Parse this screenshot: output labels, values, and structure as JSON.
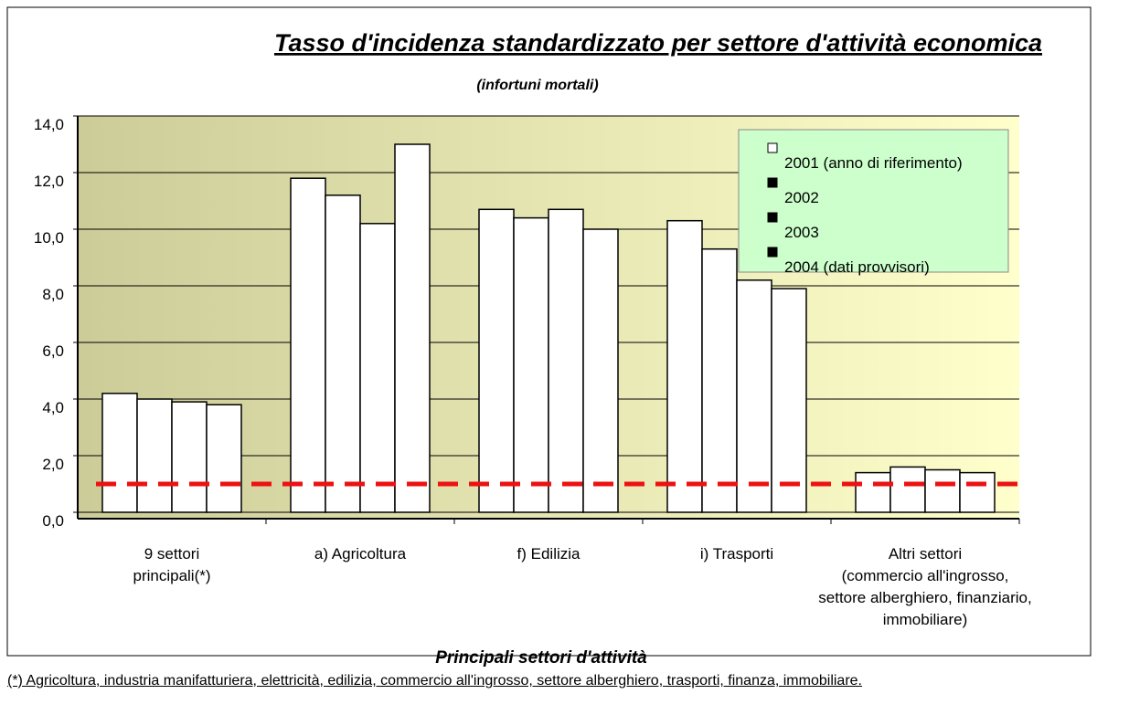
{
  "chart_data": {
    "type": "bar",
    "title": "Tasso d'incidenza standardizzato per settore d'attività economica",
    "subtitle": "(infortuni mortali)",
    "x_label": "Principali settori d'attività",
    "footnote": "(*) Agricoltura, industria manifatturiera, elettricità, edilizia, commercio all'ingrosso, settore alberghiero, trasporti, finanza, immobiliare.",
    "categories": [
      "9 settori\nprincipali(*)",
      "a) Agricoltura",
      "f) Edilizia",
      "i) Trasporti",
      "Altri settori\n(commercio all'ingrosso,\nsettore alberghiero, finanziario,\nimmobiliare)"
    ],
    "series": [
      {
        "name": "2001 (anno di riferimento)",
        "color": "#ffffff",
        "legend_color": "#ffffff",
        "values": [
          4.2,
          11.8,
          10.7,
          10.3,
          1.4
        ]
      },
      {
        "name": "2002",
        "color": "#ffffff",
        "legend_color": "#000000",
        "values": [
          4.0,
          11.2,
          10.4,
          9.3,
          1.6
        ]
      },
      {
        "name": "2003",
        "color": "#ffffff",
        "legend_color": "#000000",
        "values": [
          3.9,
          10.2,
          10.7,
          8.2,
          1.5
        ]
      },
      {
        "name": "2004 (dati provvisori)",
        "color": "#ffffff",
        "legend_color": "#000000",
        "values": [
          3.8,
          13.0,
          10.0,
          7.9,
          1.4
        ]
      }
    ],
    "reference_line": {
      "value": 1.0,
      "color": "#ee1111"
    },
    "ylim": [
      0,
      14
    ],
    "yticks": [
      {
        "value": 0,
        "label": "0,0"
      },
      {
        "value": 2,
        "label": "2,0"
      },
      {
        "value": 4,
        "label": "4,0"
      },
      {
        "value": 6,
        "label": "6,0"
      },
      {
        "value": 8,
        "label": "8,0"
      },
      {
        "value": 10,
        "label": "10,0"
      },
      {
        "value": 12,
        "label": "12,0"
      },
      {
        "value": 14,
        "label": "14,0"
      }
    ],
    "grid": true,
    "legend": "upper right"
  }
}
